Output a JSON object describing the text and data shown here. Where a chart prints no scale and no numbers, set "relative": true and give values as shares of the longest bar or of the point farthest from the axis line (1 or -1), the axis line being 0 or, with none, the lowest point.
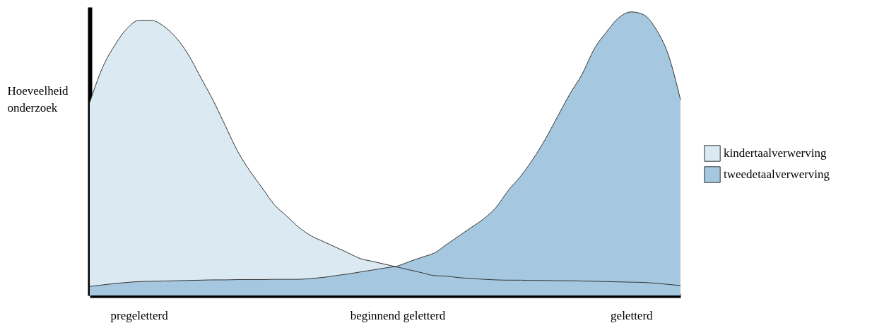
{
  "chart_data": {
    "type": "area",
    "relative": true,
    "ylabel": "Hoeveelheid onderzoek",
    "categories": [
      null,
      null,
      null,
      null,
      "pregeletterd",
      null,
      null,
      null,
      null,
      null,
      null,
      null,
      null,
      null,
      null,
      null,
      null,
      null,
      null,
      null,
      null,
      null,
      null,
      null,
      null,
      "beginnend geletterd",
      null,
      null,
      null,
      null,
      null,
      null,
      null,
      null,
      null,
      null,
      null,
      null,
      null,
      null,
      null,
      null,
      null,
      null,
      "geletterd",
      null,
      null,
      null,
      null
    ],
    "tick_labels": "x",
    "grid": false,
    "legend": "right",
    "series": [
      {
        "name": "kindertaalverwerving",
        "color": "#dbeaf2",
        "values": [
          0.68,
          0.8,
          0.88,
          0.94,
          0.97,
          0.97,
          0.95,
          0.91,
          0.85,
          0.77,
          0.69,
          0.6,
          0.51,
          0.44,
          0.38,
          0.32,
          0.28,
          0.24,
          0.21,
          0.19,
          0.17,
          0.15,
          0.13,
          0.12,
          0.11,
          0.1,
          0.09,
          0.08,
          0.07,
          0.068,
          0.063,
          0.06,
          0.057,
          0.055,
          0.054,
          0.054,
          0.053,
          0.053,
          0.052,
          0.052,
          0.051,
          0.05,
          0.049,
          0.048,
          0.047,
          0.046,
          0.043,
          0.039,
          0.035
        ]
      },
      {
        "name": "tweedetaalverwerving",
        "color": "#a5c8e0",
        "values": [
          0.032,
          0.037,
          0.042,
          0.046,
          0.049,
          0.05,
          0.051,
          0.052,
          0.053,
          0.054,
          0.055,
          0.055,
          0.056,
          0.056,
          0.056,
          0.057,
          0.057,
          0.057,
          0.06,
          0.064,
          0.07,
          0.076,
          0.083,
          0.09,
          0.097,
          0.104,
          0.12,
          0.135,
          0.15,
          0.18,
          0.21,
          0.24,
          0.27,
          0.31,
          0.37,
          0.42,
          0.48,
          0.55,
          0.63,
          0.71,
          0.78,
          0.87,
          0.93,
          0.98,
          1.0,
          0.99,
          0.94,
          0.85,
          0.69
        ]
      }
    ]
  }
}
